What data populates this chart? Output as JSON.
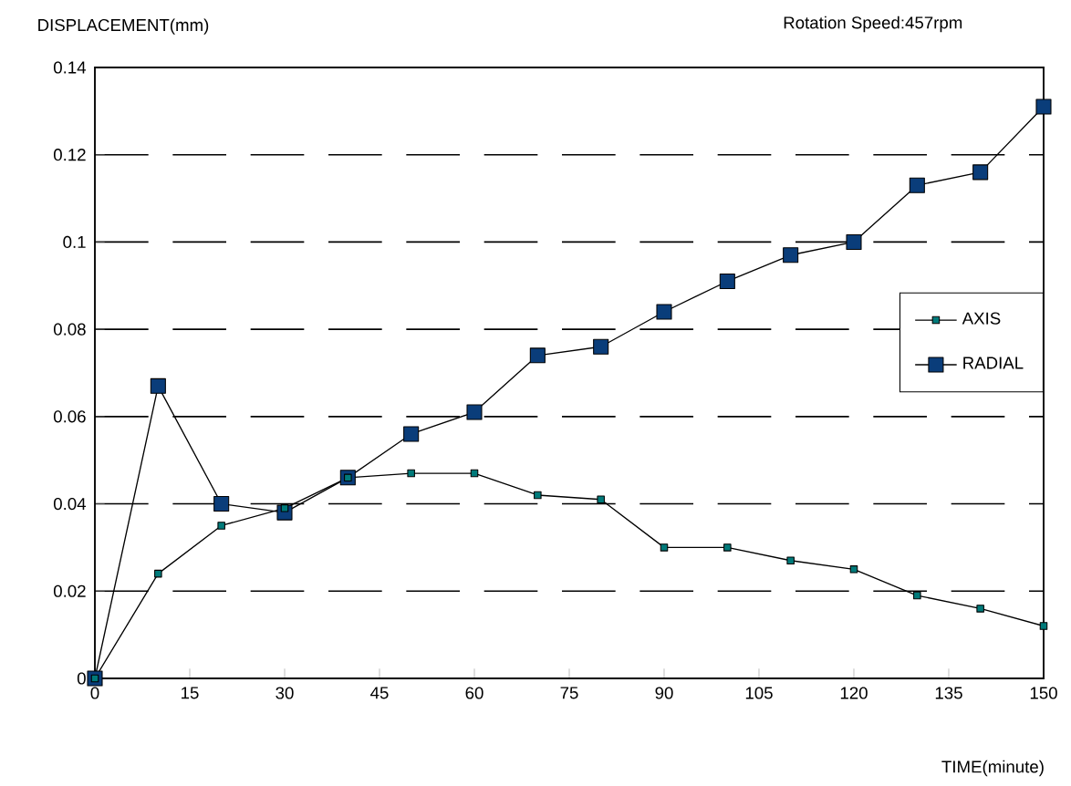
{
  "chart_data": {
    "type": "line",
    "title": "Rotation Speed:457rpm",
    "xlabel": "TIME(minute)",
    "ylabel": "DISPLACEMENT(mm)",
    "x": [
      0,
      10,
      20,
      30,
      40,
      50,
      60,
      70,
      80,
      90,
      100,
      110,
      120,
      130,
      140,
      150
    ],
    "series": [
      {
        "name": "AXIS",
        "color": "#007a7a",
        "values": [
          0,
          0.024,
          0.035,
          0.039,
          0.046,
          0.047,
          0.047,
          0.042,
          0.041,
          0.03,
          0.03,
          0.027,
          0.025,
          0.019,
          0.016,
          0.012
        ]
      },
      {
        "name": "RADIAL",
        "color": "#0a3d7a",
        "values": [
          0,
          0.067,
          0.04,
          0.038,
          0.046,
          0.056,
          0.061,
          0.074,
          0.076,
          0.084,
          0.091,
          0.097,
          0.1,
          0.113,
          0.116,
          0.131
        ]
      }
    ],
    "xlim": [
      0,
      150
    ],
    "xticks": [
      0,
      15,
      30,
      45,
      60,
      75,
      90,
      105,
      120,
      135,
      150
    ],
    "ylim": [
      0,
      0.14
    ],
    "yticks": [
      0,
      0.02,
      0.04,
      0.06,
      0.08,
      0.1,
      0.12,
      0.14
    ],
    "grid": "y",
    "legend": "right",
    "marker": "square",
    "line_style": "solid"
  }
}
